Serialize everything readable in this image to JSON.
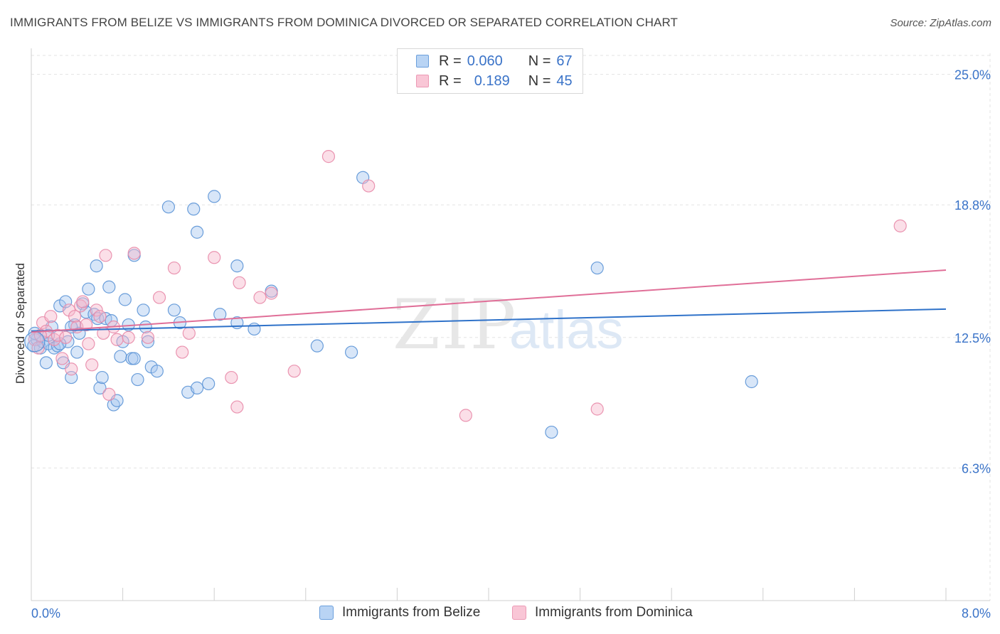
{
  "title": "IMMIGRANTS FROM BELIZE VS IMMIGRANTS FROM DOMINICA DIVORCED OR SEPARATED CORRELATION CHART",
  "source": "Source: ZipAtlas.com",
  "watermark": {
    "zip": "ZIP",
    "atlas": "atlas"
  },
  "legend": {
    "rows": [
      {
        "r_label": "R =",
        "r_value": "0.060",
        "n_label": "N =",
        "n_value": "67"
      },
      {
        "r_label": "R =",
        "r_value": "0.189",
        "n_label": "N =",
        "n_value": "45"
      }
    ]
  },
  "colors": {
    "belize_fill": "#a8c8f0",
    "belize_stroke": "#5b93d6",
    "belize_line": "#2f72c9",
    "dominica_fill": "#f6b8cb",
    "dominica_stroke": "#e88aa8",
    "dominica_line": "#e06f98",
    "tick_label": "#3a73c8",
    "grid": "#e3e3e3"
  },
  "chart_data": {
    "type": "scatter",
    "title": "IMMIGRANTS FROM BELIZE VS IMMIGRANTS FROM DOMINICA DIVORCED OR SEPARATED CORRELATION CHART",
    "xlabel": "",
    "ylabel": "Divorced or Separated",
    "xlim": [
      0,
      8
    ],
    "ylim": [
      0,
      26
    ],
    "x_tick_labels": [
      "0.0%",
      "8.0%"
    ],
    "y_ticks": [
      6.3,
      12.5,
      18.8,
      25.0
    ],
    "y_tick_labels": [
      "6.3%",
      "12.5%",
      "18.8%",
      "25.0%"
    ],
    "grid": true,
    "legend_position": "top-center",
    "series": [
      {
        "name": "Immigrants from Belize",
        "r": 0.06,
        "n": 67,
        "trend": {
          "x": [
            0,
            8
          ],
          "y": [
            12.8,
            13.85
          ]
        },
        "points": [
          [
            0.02,
            12.1
          ],
          [
            0.05,
            12.4
          ],
          [
            0.08,
            12.0
          ],
          [
            0.1,
            12.3
          ],
          [
            0.13,
            11.3
          ],
          [
            0.15,
            12.2
          ],
          [
            0.18,
            13.0
          ],
          [
            0.2,
            12.0
          ],
          [
            0.23,
            12.1
          ],
          [
            0.25,
            14.0
          ],
          [
            0.28,
            11.3
          ],
          [
            0.3,
            14.2
          ],
          [
            0.32,
            12.3
          ],
          [
            0.35,
            10.6
          ],
          [
            0.38,
            13.1
          ],
          [
            0.4,
            11.8
          ],
          [
            0.42,
            12.7
          ],
          [
            0.45,
            14.1
          ],
          [
            0.48,
            13.7
          ],
          [
            0.5,
            14.8
          ],
          [
            0.55,
            13.6
          ],
          [
            0.58,
            13.4
          ],
          [
            0.6,
            10.1
          ],
          [
            0.62,
            10.6
          ],
          [
            0.65,
            13.4
          ],
          [
            0.68,
            14.9
          ],
          [
            0.7,
            13.3
          ],
          [
            0.72,
            9.3
          ],
          [
            0.75,
            9.5
          ],
          [
            0.78,
            11.6
          ],
          [
            0.8,
            12.3
          ],
          [
            0.82,
            14.3
          ],
          [
            0.85,
            13.1
          ],
          [
            0.88,
            11.5
          ],
          [
            0.9,
            16.4
          ],
          [
            0.93,
            10.5
          ],
          [
            0.98,
            13.8
          ],
          [
            1.02,
            12.3
          ],
          [
            1.05,
            11.1
          ],
          [
            1.1,
            10.9
          ],
          [
            1.2,
            18.7
          ],
          [
            1.25,
            13.8
          ],
          [
            1.3,
            13.2
          ],
          [
            1.37,
            9.9
          ],
          [
            1.42,
            18.6
          ],
          [
            1.45,
            17.5
          ],
          [
            1.6,
            19.2
          ],
          [
            1.65,
            13.6
          ],
          [
            1.8,
            13.2
          ],
          [
            1.8,
            15.9
          ],
          [
            1.95,
            12.9
          ],
          [
            2.1,
            14.7
          ],
          [
            2.5,
            12.1
          ],
          [
            2.8,
            11.8
          ],
          [
            2.9,
            20.1
          ],
          [
            4.55,
            8.0
          ],
          [
            4.95,
            15.8
          ],
          [
            6.3,
            10.4
          ],
          [
            0.57,
            15.9
          ],
          [
            1.55,
            10.3
          ],
          [
            0.35,
            13.0
          ],
          [
            1.0,
            13.0
          ],
          [
            0.25,
            12.2
          ],
          [
            1.45,
            10.1
          ],
          [
            0.15,
            12.6
          ],
          [
            0.9,
            11.5
          ],
          [
            0.03,
            12.7
          ]
        ]
      },
      {
        "name": "Immigrants from Dominica",
        "r": 0.189,
        "n": 45,
        "trend": {
          "x": [
            0,
            8
          ],
          "y": [
            12.75,
            15.7
          ]
        },
        "points": [
          [
            0.03,
            12.4
          ],
          [
            0.06,
            12.0
          ],
          [
            0.1,
            13.2
          ],
          [
            0.13,
            12.8
          ],
          [
            0.17,
            13.5
          ],
          [
            0.2,
            12.4
          ],
          [
            0.23,
            12.6
          ],
          [
            0.27,
            11.5
          ],
          [
            0.3,
            12.5
          ],
          [
            0.33,
            13.8
          ],
          [
            0.35,
            11.0
          ],
          [
            0.38,
            13.5
          ],
          [
            0.4,
            13.0
          ],
          [
            0.43,
            14.0
          ],
          [
            0.45,
            14.2
          ],
          [
            0.48,
            13.1
          ],
          [
            0.5,
            12.2
          ],
          [
            0.53,
            11.2
          ],
          [
            0.57,
            13.8
          ],
          [
            0.6,
            13.5
          ],
          [
            0.63,
            12.7
          ],
          [
            0.65,
            16.4
          ],
          [
            0.68,
            9.8
          ],
          [
            0.72,
            13.0
          ],
          [
            0.75,
            12.4
          ],
          [
            0.85,
            12.5
          ],
          [
            0.9,
            16.5
          ],
          [
            1.02,
            12.5
          ],
          [
            1.12,
            14.4
          ],
          [
            1.25,
            15.8
          ],
          [
            1.32,
            11.8
          ],
          [
            1.38,
            12.7
          ],
          [
            1.6,
            16.3
          ],
          [
            1.75,
            10.6
          ],
          [
            1.8,
            9.2
          ],
          [
            1.82,
            15.1
          ],
          [
            2.0,
            14.4
          ],
          [
            2.1,
            14.6
          ],
          [
            2.3,
            10.9
          ],
          [
            2.6,
            21.1
          ],
          [
            2.95,
            19.7
          ],
          [
            3.8,
            8.8
          ],
          [
            4.95,
            9.1
          ],
          [
            7.6,
            17.8
          ],
          [
            0.08,
            12.6
          ]
        ]
      }
    ]
  },
  "bottom_legend": [
    {
      "label": "Immigrants from Belize"
    },
    {
      "label": "Immigrants from Dominica"
    }
  ]
}
